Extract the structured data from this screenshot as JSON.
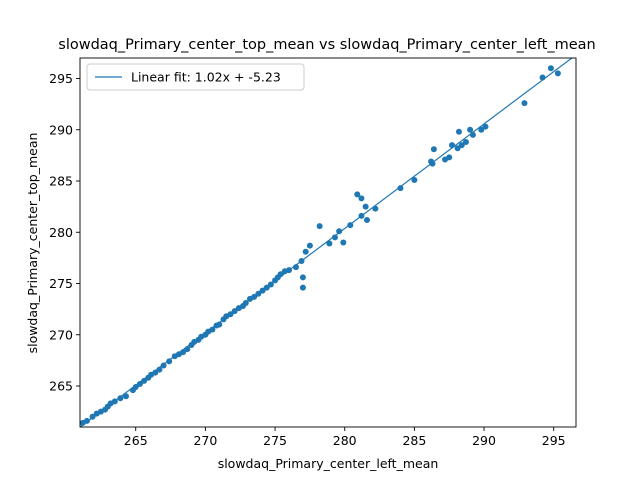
{
  "chart_data": {
    "type": "scatter",
    "title": "slowdaq_Primary_center_top_mean vs slowdaq_Primary_center_left_mean",
    "xlabel": "slowdaq_Primary_center_left_mean",
    "ylabel": "slowdaq_Primary_center_top_mean",
    "xlim": [
      261.0,
      296.6
    ],
    "ylim": [
      261.0,
      297.0
    ],
    "xticks": [
      265,
      270,
      275,
      280,
      285,
      290,
      295
    ],
    "yticks": [
      265,
      270,
      275,
      280,
      285,
      290,
      295
    ],
    "grid": false,
    "legend_position": "top-left",
    "colors": {
      "points": "#1f77b4",
      "fit_line": "#1f77b4"
    },
    "fit": {
      "label": "Linear fit: 1.02x + -5.23",
      "slope": 1.02,
      "intercept": -5.23
    },
    "series": [
      {
        "points": [
          [
            261.2,
            261.4
          ],
          [
            261.5,
            261.6
          ],
          [
            261.9,
            262.0
          ],
          [
            262.2,
            262.3
          ],
          [
            262.5,
            262.5
          ],
          [
            262.8,
            262.7
          ],
          [
            263.0,
            263.0
          ],
          [
            263.2,
            263.3
          ],
          [
            263.5,
            263.5
          ],
          [
            263.9,
            263.8
          ],
          [
            264.3,
            264.0
          ],
          [
            264.8,
            264.6
          ],
          [
            265.0,
            264.9
          ],
          [
            265.3,
            265.2
          ],
          [
            265.6,
            265.5
          ],
          [
            265.9,
            265.8
          ],
          [
            266.1,
            266.1
          ],
          [
            266.4,
            266.3
          ],
          [
            266.7,
            266.6
          ],
          [
            267.0,
            267.0
          ],
          [
            267.4,
            267.4
          ],
          [
            267.8,
            267.9
          ],
          [
            268.1,
            268.1
          ],
          [
            268.4,
            268.3
          ],
          [
            268.7,
            268.6
          ],
          [
            269.0,
            269.0
          ],
          [
            269.2,
            269.3
          ],
          [
            269.5,
            269.5
          ],
          [
            269.7,
            269.8
          ],
          [
            270.0,
            270.0
          ],
          [
            270.2,
            270.3
          ],
          [
            270.5,
            270.5
          ],
          [
            270.8,
            270.9
          ],
          [
            271.0,
            271.0
          ],
          [
            271.3,
            271.5
          ],
          [
            271.5,
            271.8
          ],
          [
            271.8,
            272.0
          ],
          [
            272.1,
            272.3
          ],
          [
            272.4,
            272.6
          ],
          [
            272.7,
            272.8
          ],
          [
            272.9,
            273.1
          ],
          [
            273.2,
            273.5
          ],
          [
            273.5,
            273.7
          ],
          [
            273.8,
            274.0
          ],
          [
            274.1,
            274.3
          ],
          [
            274.4,
            274.6
          ],
          [
            274.7,
            274.9
          ],
          [
            275.0,
            275.3
          ],
          [
            275.2,
            275.6
          ],
          [
            275.4,
            275.9
          ],
          [
            275.7,
            276.2
          ],
          [
            276.0,
            276.3
          ],
          [
            276.5,
            276.6
          ],
          [
            276.9,
            277.2
          ],
          [
            277.0,
            275.6
          ],
          [
            277.0,
            274.6
          ],
          [
            277.5,
            278.7
          ],
          [
            277.2,
            278.1
          ],
          [
            278.2,
            280.6
          ],
          [
            278.9,
            278.9
          ],
          [
            279.3,
            279.5
          ],
          [
            279.6,
            280.1
          ],
          [
            279.9,
            279.0
          ],
          [
            280.4,
            280.7
          ],
          [
            280.9,
            283.7
          ],
          [
            281.2,
            283.3
          ],
          [
            281.5,
            282.5
          ],
          [
            281.6,
            281.2
          ],
          [
            281.2,
            281.6
          ],
          [
            282.2,
            282.3
          ],
          [
            284.0,
            284.3
          ],
          [
            285.0,
            285.1
          ],
          [
            286.2,
            286.9
          ],
          [
            286.3,
            286.7
          ],
          [
            286.4,
            288.1
          ],
          [
            287.2,
            287.1
          ],
          [
            287.5,
            287.3
          ],
          [
            287.7,
            288.5
          ],
          [
            288.1,
            288.2
          ],
          [
            288.2,
            289.8
          ],
          [
            288.4,
            288.5
          ],
          [
            288.7,
            288.8
          ],
          [
            289.0,
            290.0
          ],
          [
            289.2,
            289.5
          ],
          [
            289.8,
            290.0
          ],
          [
            290.1,
            290.3
          ],
          [
            292.9,
            292.6
          ],
          [
            294.2,
            295.1
          ],
          [
            294.8,
            296.0
          ],
          [
            295.3,
            295.5
          ]
        ]
      }
    ]
  }
}
